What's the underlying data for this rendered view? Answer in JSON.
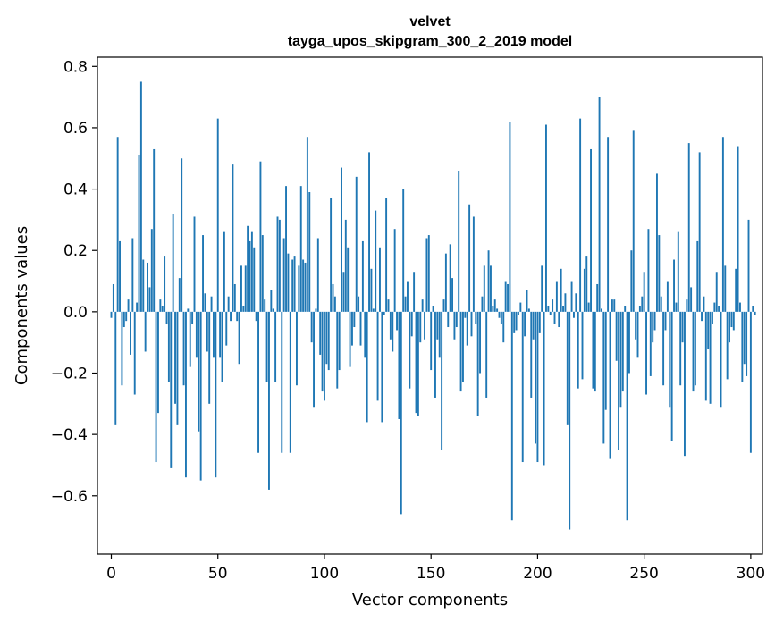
{
  "chart_data": {
    "type": "bar",
    "title": "velvet",
    "subtitle": "tayga_upos_skipgram_300_2_2019 model",
    "xlabel": "Vector components",
    "ylabel": "Components values",
    "xlim": [
      -6.5,
      305.5
    ],
    "ylim": [
      -0.79,
      0.83
    ],
    "xticks": [
      0,
      50,
      100,
      150,
      200,
      250,
      300
    ],
    "xtick_labels": [
      "0",
      "50",
      "100",
      "150",
      "200",
      "250",
      "300"
    ],
    "yticks": [
      -0.6,
      -0.4,
      -0.2,
      0.0,
      0.2,
      0.4,
      0.6,
      0.8
    ],
    "ytick_labels": [
      "−0.6",
      "−0.4",
      "−0.2",
      "0.0",
      "0.2",
      "0.4",
      "0.6",
      "0.8"
    ],
    "bar_color": "#1f77b4",
    "grid": false,
    "values": [
      -0.02,
      0.09,
      -0.37,
      0.57,
      0.23,
      -0.24,
      -0.05,
      -0.03,
      0.04,
      -0.14,
      0.24,
      -0.27,
      0.03,
      0.51,
      0.75,
      0.17,
      -0.13,
      0.16,
      0.08,
      0.27,
      0.53,
      -0.49,
      -0.33,
      0.04,
      0.02,
      0.18,
      -0.04,
      -0.23,
      -0.51,
      0.32,
      -0.3,
      -0.37,
      0.11,
      0.5,
      -0.24,
      -0.54,
      0.01,
      -0.18,
      -0.04,
      0.31,
      -0.15,
      -0.39,
      -0.55,
      0.25,
      0.06,
      -0.13,
      -0.3,
      0.05,
      -0.15,
      -0.54,
      0.63,
      -0.15,
      -0.23,
      0.26,
      -0.11,
      0.05,
      -0.03,
      0.48,
      0.09,
      -0.03,
      -0.17,
      0.15,
      0.02,
      0.15,
      0.28,
      0.23,
      0.26,
      0.21,
      -0.03,
      -0.46,
      0.49,
      0.25,
      0.04,
      -0.23,
      -0.58,
      0.07,
      0.01,
      -0.23,
      0.31,
      0.3,
      -0.46,
      0.24,
      0.41,
      0.19,
      -0.46,
      0.17,
      0.18,
      -0.24,
      0.15,
      0.41,
      0.17,
      0.16,
      0.57,
      0.39,
      -0.1,
      -0.31,
      0.01,
      0.24,
      -0.14,
      -0.26,
      -0.29,
      -0.17,
      -0.19,
      0.37,
      0.09,
      0.05,
      -0.25,
      -0.19,
      0.47,
      0.13,
      0.3,
      0.21,
      -0.18,
      -0.11,
      -0.05,
      0.44,
      0.05,
      -0.11,
      0.23,
      -0.15,
      -0.36,
      0.52,
      0.14,
      0.01,
      0.33,
      -0.29,
      0.21,
      -0.36,
      -0.01,
      0.37,
      0.04,
      -0.09,
      -0.13,
      0.27,
      -0.06,
      -0.35,
      -0.66,
      0.4,
      0.05,
      0.1,
      -0.25,
      -0.08,
      0.13,
      -0.33,
      -0.34,
      -0.1,
      0.04,
      -0.09,
      0.24,
      0.25,
      -0.19,
      0.02,
      -0.28,
      -0.09,
      -0.15,
      -0.45,
      0.04,
      0.19,
      -0.05,
      0.22,
      0.11,
      -0.09,
      -0.05,
      0.46,
      -0.26,
      -0.23,
      -0.02,
      -0.11,
      0.35,
      -0.08,
      0.31,
      -0.04,
      -0.34,
      -0.2,
      0.05,
      0.15,
      -0.28,
      0.2,
      0.15,
      0.02,
      0.04,
      0.01,
      -0.02,
      -0.04,
      -0.1,
      0.1,
      0.09,
      0.62,
      -0.68,
      -0.07,
      -0.06,
      -0.01,
      0.03,
      -0.49,
      -0.08,
      0.07,
      0.01,
      -0.28,
      -0.09,
      -0.43,
      -0.49,
      -0.07,
      0.15,
      -0.5,
      0.61,
      0.02,
      -0.01,
      0.04,
      -0.04,
      0.1,
      -0.05,
      0.14,
      0.02,
      0.06,
      -0.37,
      -0.71,
      0.1,
      -0.02,
      0.06,
      -0.25,
      0.63,
      -0.22,
      0.14,
      0.18,
      0.03,
      0.53,
      -0.25,
      -0.26,
      0.09,
      0.7,
      0.01,
      -0.43,
      -0.32,
      0.57,
      -0.48,
      0.04,
      0.04,
      -0.16,
      -0.45,
      -0.31,
      -0.26,
      0.02,
      -0.68,
      -0.2,
      0.2,
      0.59,
      -0.09,
      -0.15,
      0.02,
      0.05,
      0.13,
      -0.27,
      0.27,
      -0.21,
      -0.1,
      -0.06,
      0.45,
      0.25,
      0.05,
      -0.24,
      -0.06,
      0.1,
      -0.31,
      -0.42,
      0.17,
      0.03,
      0.26,
      -0.24,
      -0.1,
      -0.47,
      0.04,
      0.55,
      0.08,
      -0.26,
      -0.24,
      0.23,
      0.52,
      -0.03,
      0.05,
      -0.29,
      -0.12,
      -0.3,
      -0.04,
      0.03,
      0.13,
      0.02,
      -0.31,
      0.57,
      0.15,
      -0.22,
      -0.1,
      -0.05,
      -0.06,
      0.14,
      0.54,
      0.03,
      -0.23,
      -0.17,
      -0.21,
      0.3,
      -0.46,
      0.02,
      -0.01
    ]
  }
}
